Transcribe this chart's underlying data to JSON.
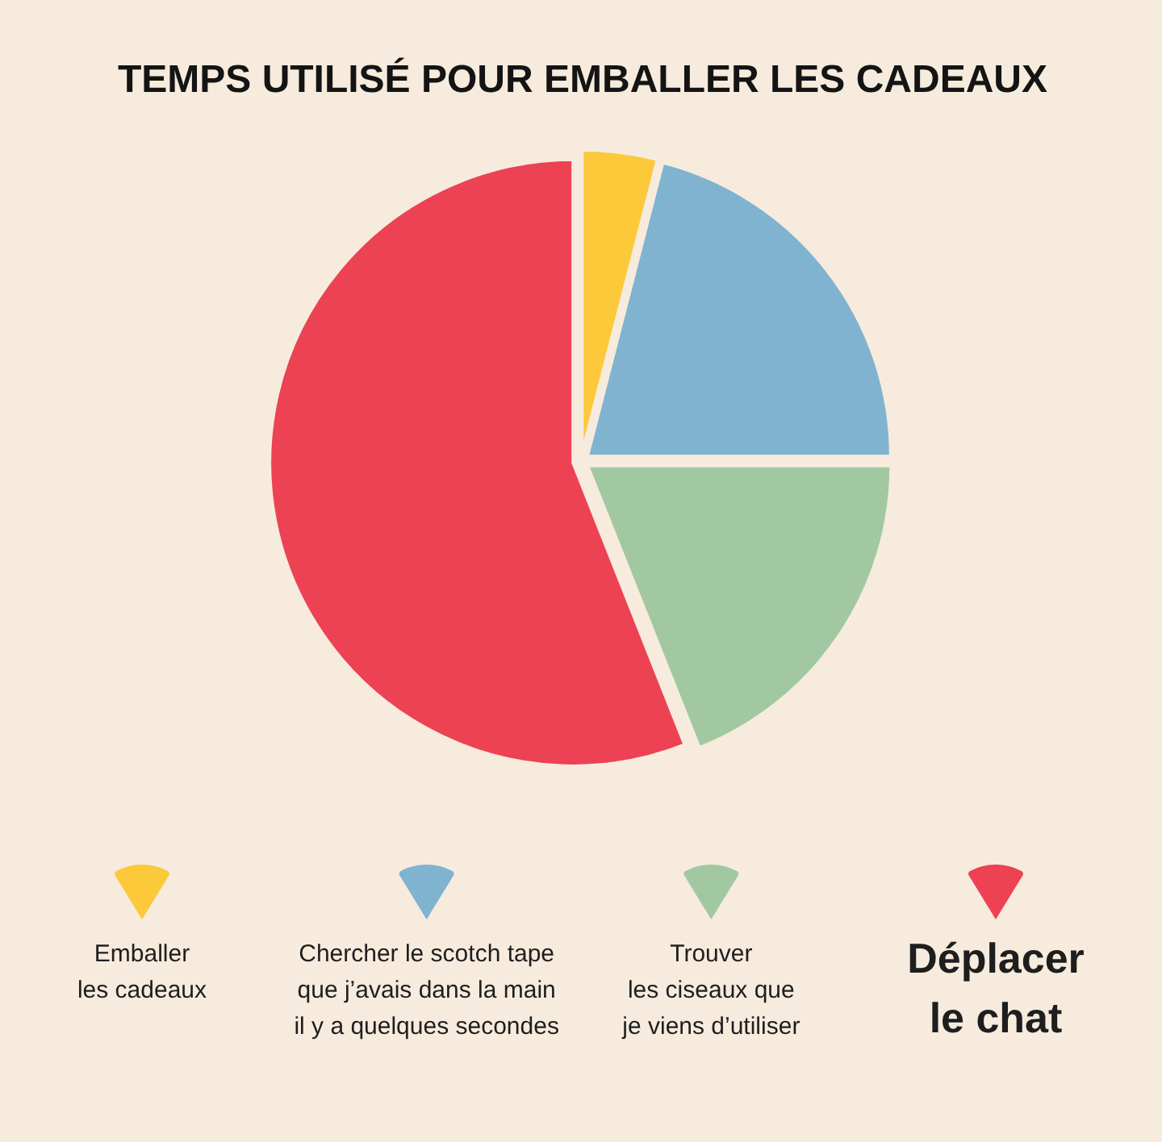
{
  "chart_data": {
    "type": "pie",
    "title": "TEMPS UTILISÉ POUR EMBALLER LES CADEAUX",
    "categories": [
      "Emballer\nles cadeaux",
      "Chercher le scotch tape\nque j’avais dans la main\nil y a quelques secondes",
      "Trouver\nles ciseaux que\nje viens d’utiliser",
      "Déplacer\nle chat"
    ],
    "values": [
      4,
      21,
      19,
      56
    ],
    "colors": [
      "#fbc93a",
      "#80b3d0",
      "#a2c8a1",
      "#ec4254"
    ],
    "legend": "bottom"
  }
}
